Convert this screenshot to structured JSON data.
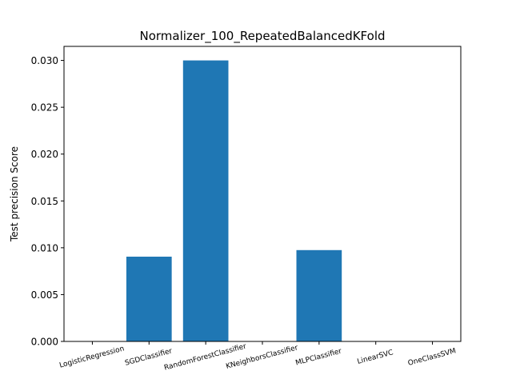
{
  "chart_data": {
    "type": "bar",
    "title": "Normalizer_100_RepeatedBalancedKFold",
    "xlabel": "",
    "ylabel": "Test precision Score",
    "categories": [
      "LogisticRegression",
      "SGDClassifier",
      "RandomForestClassifier",
      "KNeighborsClassifier",
      "MLPClassifier",
      "LinearSVC",
      "OneClassSVM"
    ],
    "values": [
      0.0,
      0.00905,
      0.03,
      0.0,
      0.00975,
      0.0,
      0.0
    ],
    "ylim": [
      0.0,
      0.0315
    ],
    "yticks": [
      "0.000",
      "0.005",
      "0.010",
      "0.015",
      "0.020",
      "0.025",
      "0.030"
    ],
    "ytick_values": [
      0.0,
      0.005,
      0.01,
      0.015,
      0.02,
      0.025,
      0.03
    ],
    "bar_color": "#1f77b4",
    "grid": false,
    "legend": "none"
  }
}
